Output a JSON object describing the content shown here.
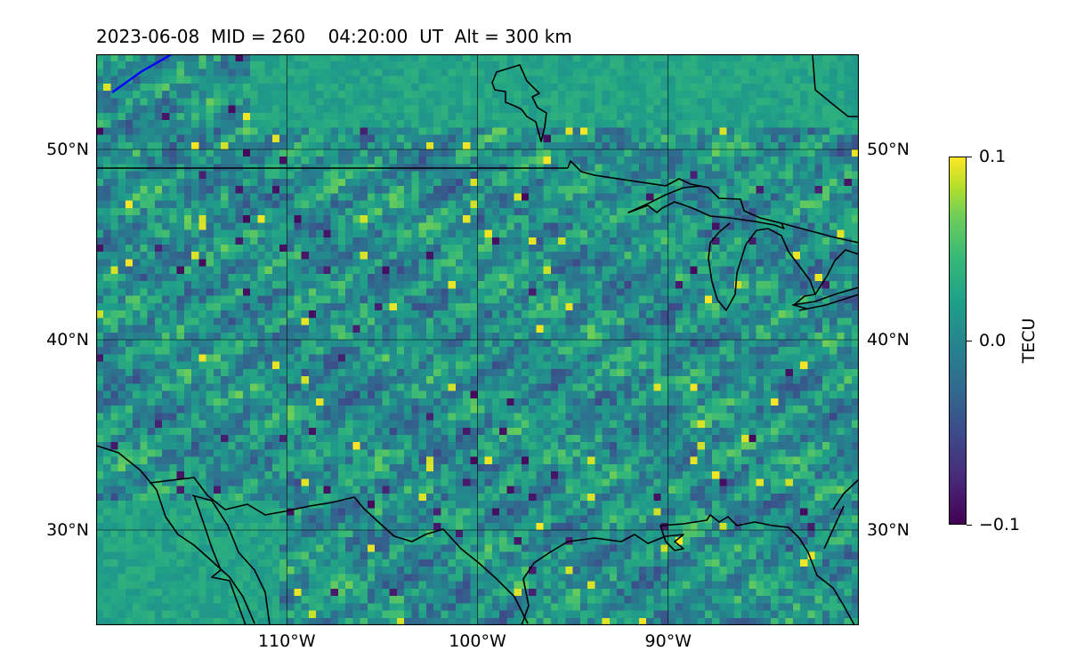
{
  "title": "2023-06-08  MID = 260    04:20:00  UT  Alt = 300 km",
  "map": {
    "lon_range": [
      -120,
      -80
    ],
    "lat_range": [
      25,
      55
    ],
    "lat_labels": [
      {
        "lat": 50,
        "text": "50°N"
      },
      {
        "lat": 40,
        "text": "40°N"
      },
      {
        "lat": 30,
        "text": "30°N"
      }
    ],
    "lon_labels": [
      {
        "lon": -110,
        "text": "110°W"
      },
      {
        "lon": -100,
        "text": "100°W"
      },
      {
        "lon": -90,
        "text": "90°W"
      }
    ],
    "gridlines": true,
    "colormap": "viridis",
    "coastline_color": "#000000",
    "track_color": "#0000ff"
  },
  "colorbar": {
    "label": "TECU",
    "min": -0.1,
    "max": 0.1,
    "ticks": [
      {
        "value": 0.1,
        "text": "0.1"
      },
      {
        "value": 0.0,
        "text": "0.0"
      },
      {
        "value": -0.1,
        "text": "−0.1"
      }
    ]
  }
}
